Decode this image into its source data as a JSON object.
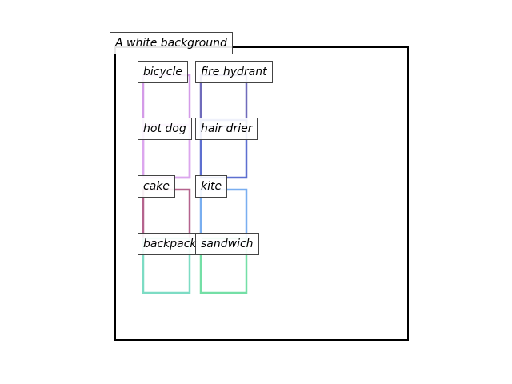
{
  "scene": {
    "caption": "A white background",
    "frame_color": "#000000"
  },
  "objects": [
    {
      "label": "bicycle",
      "color": "#d49be8"
    },
    {
      "label": "fire hydrant",
      "color": "#6f6bbb"
    },
    {
      "label": "hot dog",
      "color": "#dca6ee"
    },
    {
      "label": "hair drier",
      "color": "#5d6fd0"
    },
    {
      "label": "cake",
      "color": "#b5638e"
    },
    {
      "label": "kite",
      "color": "#79aef0"
    },
    {
      "label": "backpack",
      "color": "#7ddcc4"
    },
    {
      "label": "sandwich",
      "color": "#74dfa6"
    }
  ]
}
